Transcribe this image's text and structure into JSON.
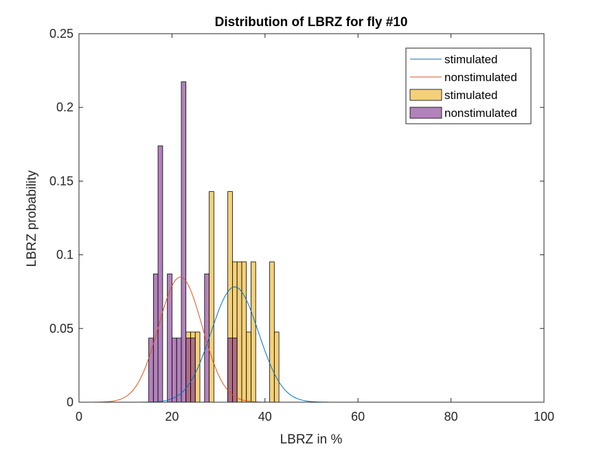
{
  "chart_data": {
    "type": "bar",
    "title": "Distribution of LBRZ for fly #10",
    "xlabel": "LBRZ in %",
    "ylabel": "LBRZ probability",
    "xlim": [
      0,
      100
    ],
    "ylim": [
      0,
      0.25
    ],
    "xticks": [
      "0",
      "20",
      "40",
      "60",
      "80",
      "100"
    ],
    "yticks": [
      "0",
      "0.05",
      "0.1",
      "0.15",
      "0.2",
      "0.25"
    ],
    "grid": false,
    "legend_position": "top-right",
    "bin_width": 1,
    "histograms": [
      {
        "name": "stimulated",
        "color": "#EDB120",
        "fill_opacity": 0.6,
        "bins": [
          {
            "x": 23,
            "y": 0.0476
          },
          {
            "x": 24,
            "y": 0.0476
          },
          {
            "x": 25,
            "y": 0.0476
          },
          {
            "x": 28,
            "y": 0.1429
          },
          {
            "x": 32,
            "y": 0.1429
          },
          {
            "x": 33,
            "y": 0.0952
          },
          {
            "x": 34,
            "y": 0.0952
          },
          {
            "x": 35,
            "y": 0.0952
          },
          {
            "x": 36,
            "y": 0.0476
          },
          {
            "x": 37,
            "y": 0.0952
          },
          {
            "x": 41,
            "y": 0.0952
          },
          {
            "x": 42,
            "y": 0.0476
          }
        ]
      },
      {
        "name": "nonstimulated",
        "color": "#7E2F8E",
        "fill_opacity": 0.6,
        "bins": [
          {
            "x": 15,
            "y": 0.0435
          },
          {
            "x": 16,
            "y": 0.087
          },
          {
            "x": 17,
            "y": 0.1739
          },
          {
            "x": 19,
            "y": 0.087
          },
          {
            "x": 20,
            "y": 0.0435
          },
          {
            "x": 21,
            "y": 0.0435
          },
          {
            "x": 22,
            "y": 0.2174
          },
          {
            "x": 23,
            "y": 0.0435
          },
          {
            "x": 24,
            "y": 0.0435
          },
          {
            "x": 27,
            "y": 0.087
          },
          {
            "x": 32,
            "y": 0.0435
          },
          {
            "x": 33,
            "y": 0.0435
          }
        ]
      }
    ],
    "curves": [
      {
        "name": "stimulated",
        "color": "#0072BD",
        "type": "normal_pdf",
        "mean": 33.5,
        "sd": 5.1
      },
      {
        "name": "nonstimulated",
        "color": "#D95319",
        "type": "normal_pdf",
        "mean": 21.8,
        "sd": 4.7
      }
    ],
    "legend": [
      {
        "label": "stimulated",
        "kind": "line",
        "color": "#0072BD"
      },
      {
        "label": "nonstimulated",
        "kind": "line",
        "color": "#D95319"
      },
      {
        "label": "stimulated",
        "kind": "patch",
        "color": "#EDB120"
      },
      {
        "label": "nonstimulated",
        "kind": "patch",
        "color": "#7E2F8E"
      }
    ]
  }
}
